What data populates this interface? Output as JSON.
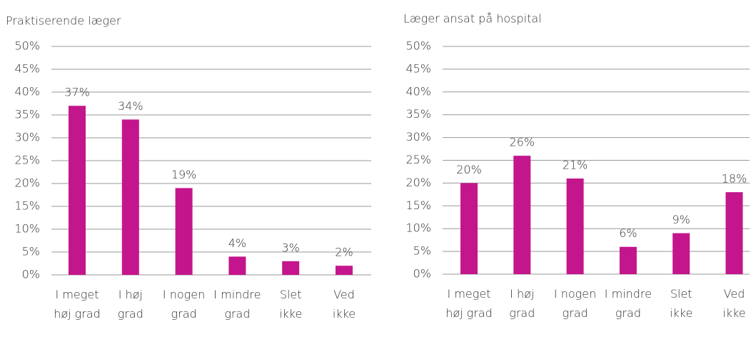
{
  "chart_data": [
    {
      "type": "bar",
      "title": "Praktiserende læger",
      "categories": [
        "I meget\nhøj grad",
        "I høj\ngrad",
        "I nogen\ngrad",
        "I mindre\ngrad",
        "Slet\nikke",
        "Ved\nikke"
      ],
      "values": [
        37,
        34,
        19,
        4,
        3,
        2
      ],
      "value_labels": [
        "37%",
        "34%",
        "19%",
        "4%",
        "3%",
        "2%"
      ],
      "color": "#c4168c",
      "ylim": [
        0,
        50
      ],
      "yticks": [
        {
          "value": 0,
          "label": "0%"
        },
        {
          "value": 5,
          "label": "5%"
        },
        {
          "value": 10,
          "label": "10%"
        },
        {
          "value": 15,
          "label": "15%"
        },
        {
          "value": 20,
          "label": "20%"
        },
        {
          "value": 25,
          "label": "25%"
        },
        {
          "value": 30,
          "label": "30%"
        },
        {
          "value": 35,
          "label": "35%"
        },
        {
          "value": 40,
          "label": "40%"
        },
        {
          "value": 45,
          "label": "45%"
        },
        {
          "value": 50,
          "label": "50%"
        }
      ],
      "grid": true
    },
    {
      "type": "bar",
      "title": "Læger ansat på hospital",
      "categories": [
        "I meget\nhøj grad",
        "I høj\ngrad",
        "I nogen\ngrad",
        "I mindre\ngrad",
        "Slet\nikke",
        "Ved\nikke"
      ],
      "values": [
        20,
        26,
        21,
        6,
        9,
        18
      ],
      "value_labels": [
        "20%",
        "26%",
        "21%",
        "6%",
        "9%",
        "18%"
      ],
      "color": "#c4168c",
      "ylim": [
        0,
        50
      ],
      "yticks": [
        {
          "value": 0,
          "label": "0%"
        },
        {
          "value": 5,
          "label": "5%"
        },
        {
          "value": 10,
          "label": "10%"
        },
        {
          "value": 15,
          "label": "15%"
        },
        {
          "value": 20,
          "label": "20%"
        },
        {
          "value": 25,
          "label": "25%"
        },
        {
          "value": 30,
          "label": "30%"
        },
        {
          "value": 35,
          "label": "35%"
        },
        {
          "value": 40,
          "label": "40%"
        },
        {
          "value": 45,
          "label": "45%"
        },
        {
          "value": 50,
          "label": "50%"
        }
      ],
      "grid": true
    }
  ]
}
